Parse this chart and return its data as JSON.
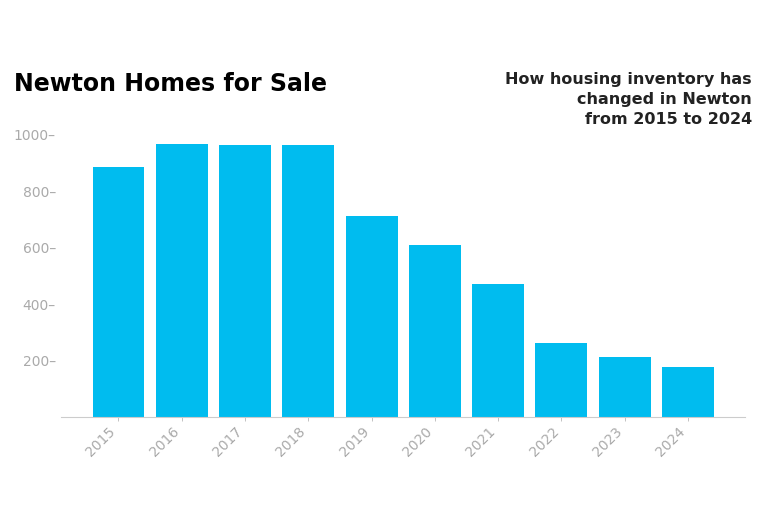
{
  "title": "Newton Homes for Sale",
  "annotation": "How housing inventory has\nchanged in Newton\nfrom 2015 to 2024",
  "categories": [
    "2015",
    "2016",
    "2017",
    "2018",
    "2019",
    "2020",
    "2021",
    "2022",
    "2023",
    "2024"
  ],
  "values": [
    885,
    965,
    963,
    962,
    712,
    610,
    473,
    263,
    215,
    178
  ],
  "bar_color": "#00BCEF",
  "background_color": "#ffffff",
  "ylim": [
    0,
    1080
  ],
  "yticks": [
    200,
    400,
    600,
    800,
    1000
  ],
  "title_fontsize": 17,
  "annotation_fontsize": 11.5,
  "ytick_label_color": "#aaaaaa",
  "xtick_label_color": "#aaaaaa",
  "bar_width": 0.82
}
